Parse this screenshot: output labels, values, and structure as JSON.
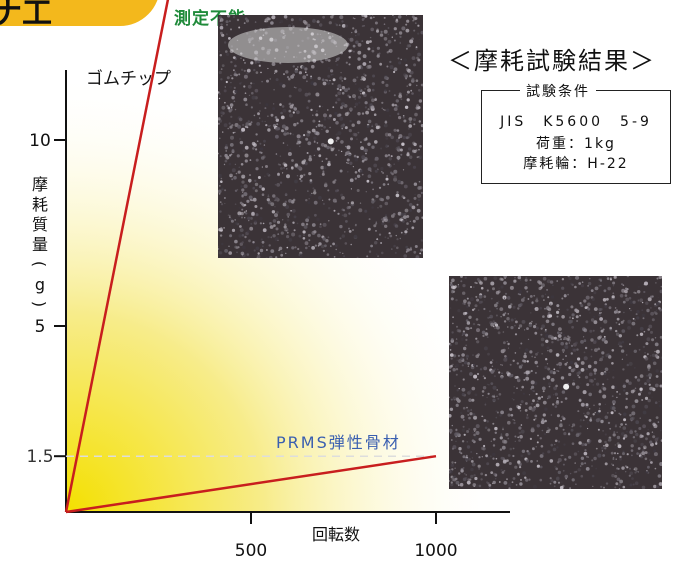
{
  "header": {
    "badge_text": "ナ工",
    "unmeasurable_label": "測定不能"
  },
  "results": {
    "title": "＜摩耗試験結果＞",
    "conditions_title": "試験条件",
    "conditions": [
      "JIS　K5600　5-9",
      "荷重：1kg",
      "摩耗輪：H-22"
    ]
  },
  "chart_data": {
    "type": "line",
    "x_label": "回転数",
    "y_label": [
      "摩",
      "耗",
      "質",
      "量",
      "(",
      "g",
      ")"
    ],
    "x_ticks": [
      500,
      1000
    ],
    "y_ticks": [
      {
        "value": 10,
        "label": "10"
      },
      {
        "value": 5,
        "label": "5"
      },
      {
        "value": 1.5,
        "label": "1.5"
      }
    ],
    "xlim": [
      0,
      1200
    ],
    "ylim": [
      0,
      13
    ],
    "series": [
      {
        "name": "ゴムチップ",
        "x": [
          0,
          300
        ],
        "y": [
          0,
          15.0
        ],
        "note": "測定不能"
      },
      {
        "name": "PRMS弾性骨材",
        "x": [
          0,
          1000
        ],
        "y": [
          0,
          1.5
        ]
      }
    ],
    "reference_line": {
      "y": 1.5
    },
    "colors": {
      "rubber_line": "#c81e1e",
      "prms_line": "#c81e1e",
      "prms_label": "#3a5fb0",
      "gradient_start": "#f4e000",
      "dash": "#dddddd"
    }
  }
}
